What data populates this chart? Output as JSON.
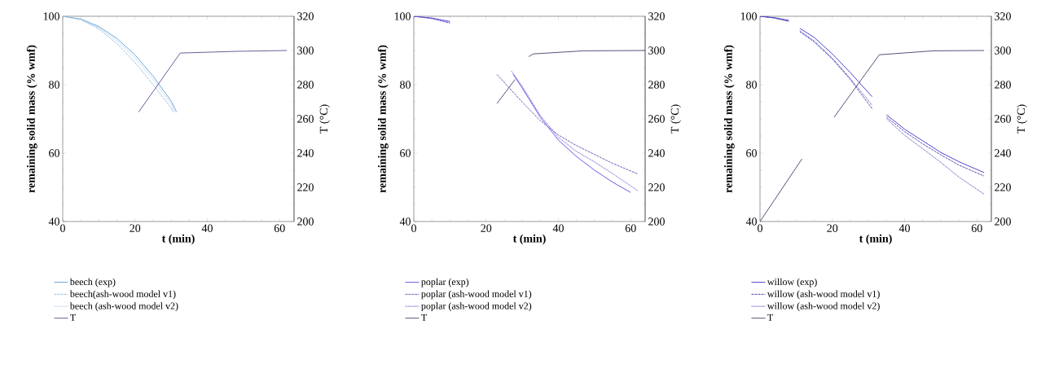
{
  "chart_data": [
    {
      "type": "line",
      "xlabel": "t (min)",
      "ylabel": "remaining solid mass (% wmf)",
      "y2label": "T (°C)",
      "xlim": [
        0,
        64
      ],
      "xticks": [
        0,
        20,
        40,
        60
      ],
      "ylim": [
        40,
        100
      ],
      "yticks": [
        40,
        60,
        80,
        100
      ],
      "y2lim": [
        200,
        320
      ],
      "y2ticks": [
        200,
        220,
        240,
        260,
        280,
        300,
        320
      ],
      "legend": "bottom",
      "series": [
        {
          "name": "beech (exp)",
          "color": "#5b9bd5",
          "line_style": "solid",
          "x": [
            0,
            5,
            10,
            15,
            20,
            25,
            30,
            31.5
          ],
          "values": [
            100,
            99.2,
            97,
            93.5,
            88.7,
            82.5,
            75.2,
            72
          ]
        },
        {
          "name": "beech(ash-wood model v1)",
          "color": "#8fb8e0",
          "line_style": "dashed",
          "x": [
            0,
            5,
            10,
            15,
            20,
            25,
            30,
            30.5
          ],
          "values": [
            100,
            99,
            96.3,
            92,
            86.5,
            80,
            73.2,
            72
          ]
        },
        {
          "name": "beech (ash-wood model v2)",
          "color": "#a9c8ea",
          "line_style": "dotted",
          "x": [
            0,
            5,
            10,
            15,
            20,
            25,
            30,
            31
          ],
          "values": [
            100,
            99.1,
            96.7,
            92.8,
            87.8,
            81.5,
            74.3,
            72
          ]
        },
        {
          "name": "T",
          "color": "#5a4b8c",
          "line_style": "solid",
          "axis": "y2",
          "x": [
            21,
            32.5,
            48,
            62
          ],
          "values": [
            264,
            298.5,
            299.5,
            300
          ]
        }
      ]
    },
    {
      "type": "line",
      "xlabel": "t (min)",
      "ylabel": "remaining solid mass (% wmf)",
      "y2label": "T (°C)",
      "xlim": [
        0,
        64
      ],
      "xticks": [
        0,
        20,
        40,
        60
      ],
      "ylim": [
        40,
        100
      ],
      "yticks": [
        40,
        60,
        80,
        100
      ],
      "y2lim": [
        200,
        320
      ],
      "y2ticks": [
        200,
        220,
        240,
        260,
        280,
        300,
        320
      ],
      "legend": "bottom",
      "series": [
        {
          "name": "poplar (exp)",
          "color": "#6a3fe0",
          "line_style": "solid",
          "x": [
            0,
            5,
            10,
            11,
            27.5,
            30,
            35,
            40,
            45,
            50,
            55,
            60
          ],
          "values": [
            100,
            99.5,
            98.5,
            null,
            83,
            79,
            70.5,
            63.8,
            59,
            55,
            51.5,
            48.5
          ]
        },
        {
          "name": "poplar (ash-wood model v1)",
          "color": "#5a4fb0",
          "line_style": "dashed",
          "x": [
            0,
            5,
            10,
            11,
            23,
            30,
            35,
            40,
            45,
            50,
            55,
            62
          ],
          "values": [
            100,
            99.3,
            98,
            null,
            83,
            74.9,
            69.5,
            65.3,
            62.2,
            59.6,
            57,
            53.9
          ]
        },
        {
          "name": "poplar (ash-wood model v2)",
          "color": "#6a55d0",
          "line_style": "dotted",
          "x": [
            0,
            5,
            10,
            11,
            27,
            30,
            35,
            40,
            45,
            50,
            55,
            62
          ],
          "values": [
            100,
            99.4,
            98.2,
            null,
            84,
            79.5,
            71,
            64.6,
            60.5,
            57.4,
            54,
            49
          ]
        },
        {
          "name": "T",
          "color": "#4a3a6a",
          "line_style": "solid",
          "axis": "y2",
          "x": [
            23,
            28,
            29,
            31.8,
            33,
            47,
            64
          ],
          "values": [
            269,
            283,
            null,
            296.4,
            298,
            299.8,
            300
          ]
        }
      ]
    },
    {
      "type": "line",
      "xlabel": "t (min)",
      "ylabel": "remaining solid mass (% wmf)",
      "y2label": "T (°C)",
      "xlim": [
        0,
        64
      ],
      "xticks": [
        0,
        20,
        40,
        60
      ],
      "ylim": [
        40,
        100
      ],
      "yticks": [
        40,
        60,
        80,
        100
      ],
      "y2lim": [
        200,
        320
      ],
      "y2ticks": [
        200,
        220,
        240,
        260,
        280,
        300,
        320
      ],
      "legend": "bottom",
      "series": [
        {
          "name": "willow (exp)",
          "color": "#3a2fc8",
          "line_style": "solid",
          "x": [
            0,
            4,
            8,
            9,
            11,
            15,
            20,
            25,
            31,
            33,
            35,
            40,
            45,
            50,
            55,
            62
          ],
          "values": [
            100,
            99.6,
            98.8,
            null,
            96.5,
            93.8,
            89,
            83.5,
            76.5,
            null,
            71.2,
            67,
            63.6,
            60.2,
            57.5,
            54.3
          ]
        },
        {
          "name": "willow (ash-wood model v1)",
          "color": "#3f3aa8",
          "line_style": "dashed",
          "x": [
            0,
            4,
            8,
            9,
            11,
            15,
            20,
            25,
            31,
            33,
            35,
            40,
            45,
            50,
            55,
            62
          ],
          "values": [
            100,
            99.5,
            98.5,
            null,
            95.5,
            92.5,
            87.5,
            81.5,
            73,
            null,
            70.5,
            66.3,
            62.7,
            59.5,
            56.5,
            53.3
          ]
        },
        {
          "name": "willow (ash-wood model v2)",
          "color": "#5050c0",
          "line_style": "dotted",
          "x": [
            0,
            4,
            8,
            9,
            11,
            15,
            20,
            25,
            31,
            33,
            35,
            40,
            45,
            50,
            55,
            62
          ],
          "values": [
            100,
            99.5,
            98.6,
            null,
            95.8,
            92.8,
            87.8,
            81.8,
            74,
            null,
            70,
            65.2,
            61.3,
            57.3,
            53,
            48
          ]
        },
        {
          "name": "T",
          "color": "#4a3a6a",
          "line_style": "solid",
          "axis": "y2",
          "x": [
            0,
            11.6,
            15,
            20.5,
            33,
            48,
            62
          ],
          "values": [
            200,
            236.6,
            null,
            261,
            297.5,
            299.8,
            300
          ]
        }
      ]
    }
  ]
}
